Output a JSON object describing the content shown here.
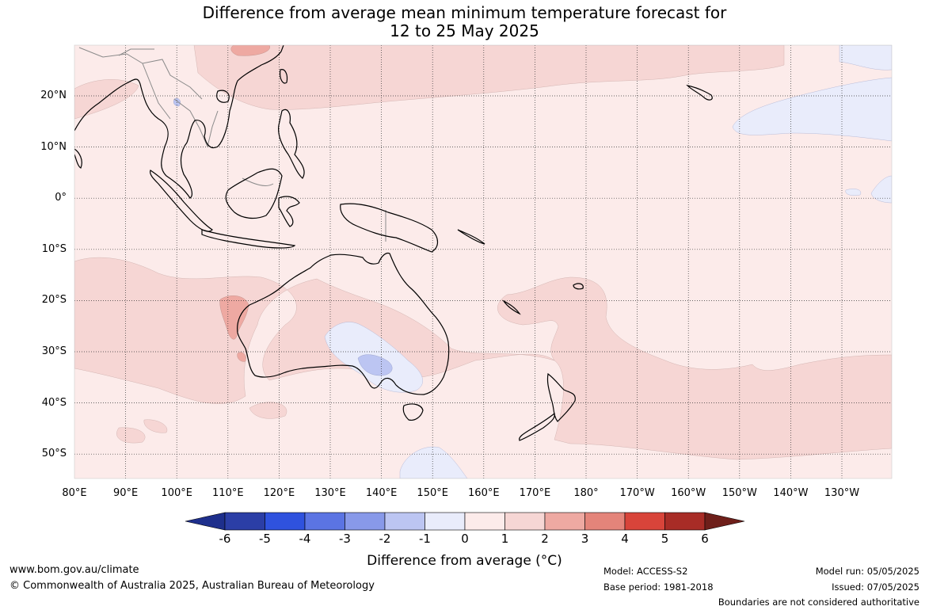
{
  "title": {
    "line1": "Difference from average mean minimum temperature forecast for",
    "line2": "12 to 25 May 2025"
  },
  "map": {
    "lat_labels": [
      "20°N",
      "10°N",
      "0°",
      "10°S",
      "20°S",
      "30°S",
      "40°S",
      "50°S"
    ],
    "lon_labels": [
      "80°E",
      "90°E",
      "100°E",
      "110°E",
      "120°E",
      "130°E",
      "140°E",
      "150°E",
      "160°E",
      "170°E",
      "180°",
      "170°W",
      "160°W",
      "150°W",
      "140°W",
      "130°W"
    ],
    "lat_range": [
      "55°S",
      "30°N"
    ],
    "lon_range": [
      "80°E",
      "120°W"
    ],
    "background_category": "0 to 1",
    "coastline_color": "#000000",
    "border_color": "#8a8a8a",
    "gridline_style": "dotted"
  },
  "colorbar": {
    "ticks": [
      "-6",
      "-5",
      "-4",
      "-3",
      "-2",
      "-1",
      "0",
      "1",
      "2",
      "3",
      "4",
      "5",
      "6"
    ],
    "colors": [
      "#1e2f8c",
      "#2b3ea6",
      "#2f52de",
      "#5b74e3",
      "#8899e9",
      "#bcc5f2",
      "#e9ecfb",
      "#fcebea",
      "#f6d6d4",
      "#eea9a2",
      "#e4847a",
      "#d8443a",
      "#a82c26",
      "#6e1f1a"
    ],
    "caption": "Difference from average (°C)"
  },
  "footer": {
    "website": "www.bom.gov.au/climate",
    "copyright": "© Commonwealth of Australia 2025, Australian Bureau of Meteorology",
    "model": "Model: ACCESS-S2",
    "base_period": "Base period: 1981-2018",
    "model_run": "Model run: 05/05/2025",
    "issued": "Issued: 07/05/2025",
    "disclaimer": "Boundaries are not considered authoritative"
  }
}
